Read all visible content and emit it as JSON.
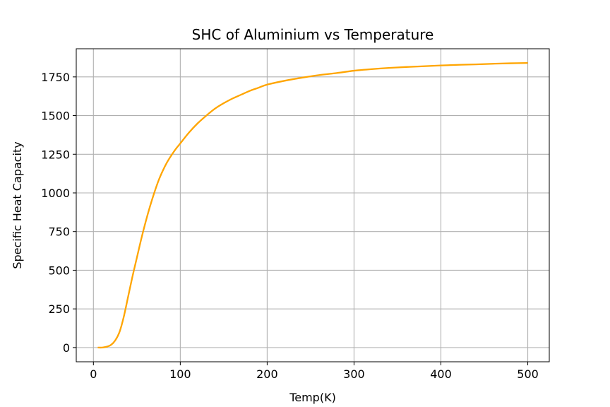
{
  "chart_data": {
    "type": "line",
    "title": "SHC of Aluminium vs Temperature",
    "xlabel": "Temp(K)",
    "ylabel": "Specific Heat Capacity",
    "xlim": [
      -19.75,
      524.75
    ],
    "ylim": [
      -92,
      1932
    ],
    "xticks": [
      0,
      100,
      200,
      300,
      400,
      500
    ],
    "yticks": [
      0,
      250,
      500,
      750,
      1000,
      1250,
      1500,
      1750
    ],
    "grid": true,
    "legend": "none",
    "series": [
      {
        "color": "#ffa500",
        "x": [
          5,
          10,
          15,
          20,
          25,
          30,
          35,
          40,
          45,
          50,
          55,
          60,
          65,
          70,
          75,
          80,
          85,
          90,
          95,
          100,
          110,
          120,
          130,
          140,
          150,
          160,
          170,
          180,
          190,
          200,
          220,
          240,
          260,
          280,
          300,
          320,
          340,
          360,
          380,
          400,
          420,
          440,
          460,
          480,
          500
        ],
        "y": [
          0,
          0,
          5,
          16,
          45,
          100,
          200,
          330,
          460,
          580,
          700,
          810,
          910,
          1000,
          1080,
          1145,
          1200,
          1245,
          1285,
          1320,
          1390,
          1450,
          1500,
          1545,
          1580,
          1610,
          1635,
          1660,
          1680,
          1700,
          1725,
          1745,
          1762,
          1775,
          1790,
          1800,
          1808,
          1814,
          1819,
          1824,
          1828,
          1831,
          1835,
          1838,
          1840
        ]
      }
    ]
  }
}
